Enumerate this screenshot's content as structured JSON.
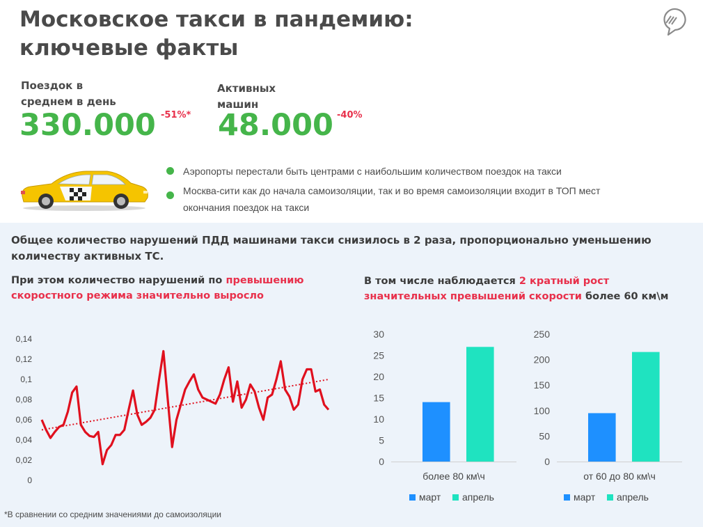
{
  "header": {
    "title_line1": "Московское такси в пандемию:",
    "title_line2": "ключевые факты"
  },
  "kpis": [
    {
      "label_line1": "Поездок в",
      "label_line2": "среднем в день",
      "value": "330.000",
      "delta": "-51%*"
    },
    {
      "label_line1": "Активных",
      "label_line2": "машин",
      "value": "48.000",
      "delta": "-40%"
    }
  ],
  "facts": [
    {
      "text": "Аэропорты перестали быть центрами с наибольшим количеством поездок на такси"
    },
    {
      "text_line1": "Москва-сити как до начала самоизоляции, так и во время самоизоляции входит в ТОП мест",
      "text_line2": "окончания поездок на такси"
    }
  ],
  "intro": "Общее количество нарушений ПДД машинами такси снизилось в 2 раза, пропорционально уменьшению количеству активных ТС.",
  "left_heading": {
    "pre": "При этом количество нарушений по ",
    "highlight_line1": "превышению",
    "highlight_line2": "скоростного режима значительно выросло"
  },
  "right_heading": {
    "pre": "В том числе наблюдается ",
    "highlight_line1": "2 кратный рост",
    "highlight_line2": "значительных превышений скорости",
    "post": " более 60 км\\м"
  },
  "footnote": "*В сравнении со средним значениями до самоизоляции",
  "colors": {
    "green": "#45b54a",
    "red": "#e8304b",
    "line": "#e0101e",
    "march": "#1e90ff",
    "april": "#1fe3c0",
    "panel": "#edf3fa"
  },
  "chart_data": [
    {
      "type": "line",
      "ylim": [
        0,
        0.14
      ],
      "yticks": [
        "0",
        "0,02",
        "0,04",
        "0,06",
        "0,08",
        "0,1",
        "0,12",
        "0,14"
      ],
      "ytick_values": [
        0,
        0.02,
        0.04,
        0.06,
        0.08,
        0.1,
        0.12,
        0.14
      ],
      "trendline": {
        "start": 0.05,
        "end": 0.1,
        "style": "dotted"
      },
      "values": [
        0.06,
        0.05,
        0.042,
        0.048,
        0.053,
        0.055,
        0.068,
        0.087,
        0.093,
        0.055,
        0.048,
        0.044,
        0.043,
        0.048,
        0.016,
        0.03,
        0.035,
        0.045,
        0.045,
        0.05,
        0.07,
        0.089,
        0.065,
        0.055,
        0.058,
        0.062,
        0.07,
        0.1,
        0.128,
        0.08,
        0.033,
        0.06,
        0.075,
        0.09,
        0.098,
        0.105,
        0.09,
        0.082,
        0.08,
        0.078,
        0.076,
        0.085,
        0.1,
        0.112,
        0.078,
        0.098,
        0.072,
        0.08,
        0.095,
        0.088,
        0.072,
        0.06,
        0.082,
        0.085,
        0.1,
        0.118,
        0.09,
        0.083,
        0.07,
        0.075,
        0.1,
        0.11,
        0.11,
        0.088,
        0.09,
        0.075,
        0.07
      ]
    },
    {
      "type": "bar",
      "categories": [
        "более 80 км\\ч"
      ],
      "series": [
        {
          "name": "март",
          "values": [
            14
          ]
        },
        {
          "name": "апрель",
          "values": [
            27
          ]
        }
      ],
      "ylim": [
        0,
        30
      ],
      "yticks": [
        0,
        5,
        10,
        15,
        20,
        25,
        30
      ]
    },
    {
      "type": "bar",
      "categories": [
        "от 60 до 80 км\\ч"
      ],
      "series": [
        {
          "name": "март",
          "values": [
            95
          ]
        },
        {
          "name": "апрель",
          "values": [
            215
          ]
        }
      ],
      "ylim": [
        0,
        250
      ],
      "yticks": [
        0,
        50,
        100,
        150,
        200,
        250
      ]
    }
  ]
}
